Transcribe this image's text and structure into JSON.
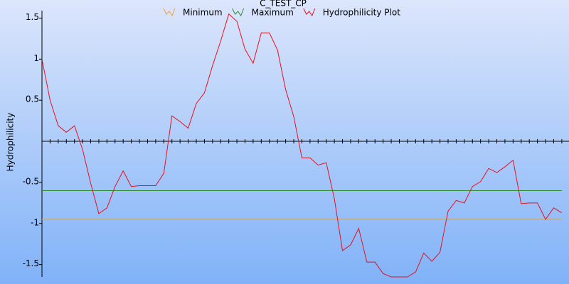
{
  "chart_data": {
    "type": "line",
    "title": "C_TEST_CP",
    "y_label": "Hydrophilicity",
    "ylim": [
      -1.65,
      1.72
    ],
    "yticks": [
      1.5,
      1,
      0.5,
      -0.5,
      -1,
      -1.5
    ],
    "series": [
      {
        "name": "Minimum",
        "color": "#f0a030",
        "values": [
          -0.95,
          -0.95,
          -0.95,
          -0.95,
          -0.95,
          -0.95,
          -0.95,
          -0.95,
          -0.95,
          -0.95,
          -0.95,
          -0.95,
          -0.95,
          -0.95,
          -0.95,
          -0.95,
          -0.95,
          -0.95,
          -0.95,
          -0.95,
          -0.95,
          -0.95,
          -0.95,
          -0.95,
          -0.95,
          -0.95,
          -0.95,
          -0.95,
          -0.95,
          -0.95,
          -0.95,
          -0.95,
          -0.95,
          -0.95,
          -0.95,
          -0.95,
          -0.95,
          -0.95,
          -0.95,
          -0.95,
          -0.95,
          -0.95,
          -0.95,
          -0.95,
          -0.95,
          -0.95,
          -0.95,
          -0.95,
          -0.95,
          -0.95,
          -0.95,
          -0.95,
          -0.95,
          -0.95,
          -0.95,
          -0.95,
          -0.95,
          -0.95,
          -0.95,
          -0.95,
          -0.95,
          -0.95,
          -0.95,
          -0.95,
          -0.95
        ]
      },
      {
        "name": "Maximum",
        "color": "#2e8b2e",
        "values": [
          -0.6,
          -0.6,
          -0.6,
          -0.6,
          -0.6,
          -0.6,
          -0.6,
          -0.6,
          -0.6,
          -0.6,
          -0.6,
          -0.6,
          -0.6,
          -0.6,
          -0.6,
          -0.6,
          -0.6,
          -0.6,
          -0.6,
          -0.6,
          -0.6,
          -0.6,
          -0.6,
          -0.6,
          -0.6,
          -0.6,
          -0.6,
          -0.6,
          -0.6,
          -0.6,
          -0.6,
          -0.6,
          -0.6,
          -0.6,
          -0.6,
          -0.6,
          -0.6,
          -0.6,
          -0.6,
          -0.6,
          -0.6,
          -0.6,
          -0.6,
          -0.6,
          -0.6,
          -0.6,
          -0.6,
          -0.6,
          -0.6,
          -0.6,
          -0.6,
          -0.6,
          -0.6,
          -0.6,
          -0.6,
          -0.6,
          -0.6,
          -0.6,
          -0.6,
          -0.6,
          -0.6,
          -0.6,
          -0.6,
          -0.6,
          -0.6
        ]
      },
      {
        "name": "Hydrophilicity Plot",
        "color": "#e8101c",
        "values": [
          1.0,
          0.5,
          0.19,
          0.11,
          0.19,
          -0.1,
          -0.51,
          -0.88,
          -0.81,
          -0.55,
          -0.36,
          -0.55,
          -0.54,
          -0.54,
          -0.54,
          -0.39,
          0.31,
          0.24,
          0.16,
          0.46,
          0.59,
          0.92,
          1.22,
          1.55,
          1.46,
          1.12,
          0.95,
          1.32,
          1.32,
          1.11,
          0.63,
          0.3,
          -0.2,
          -0.2,
          -0.29,
          -0.26,
          -0.7,
          -1.33,
          -1.26,
          -1.06,
          -1.47,
          -1.47,
          -1.61,
          -1.65,
          -1.65,
          -1.65,
          -1.59,
          -1.36,
          -1.46,
          -1.35,
          -0.85,
          -0.72,
          -0.75,
          -0.55,
          -0.49,
          -0.33,
          -0.38,
          -0.31,
          -0.23,
          -0.76,
          -0.75,
          -0.75,
          -0.95,
          -0.81,
          -0.87
        ]
      }
    ]
  }
}
